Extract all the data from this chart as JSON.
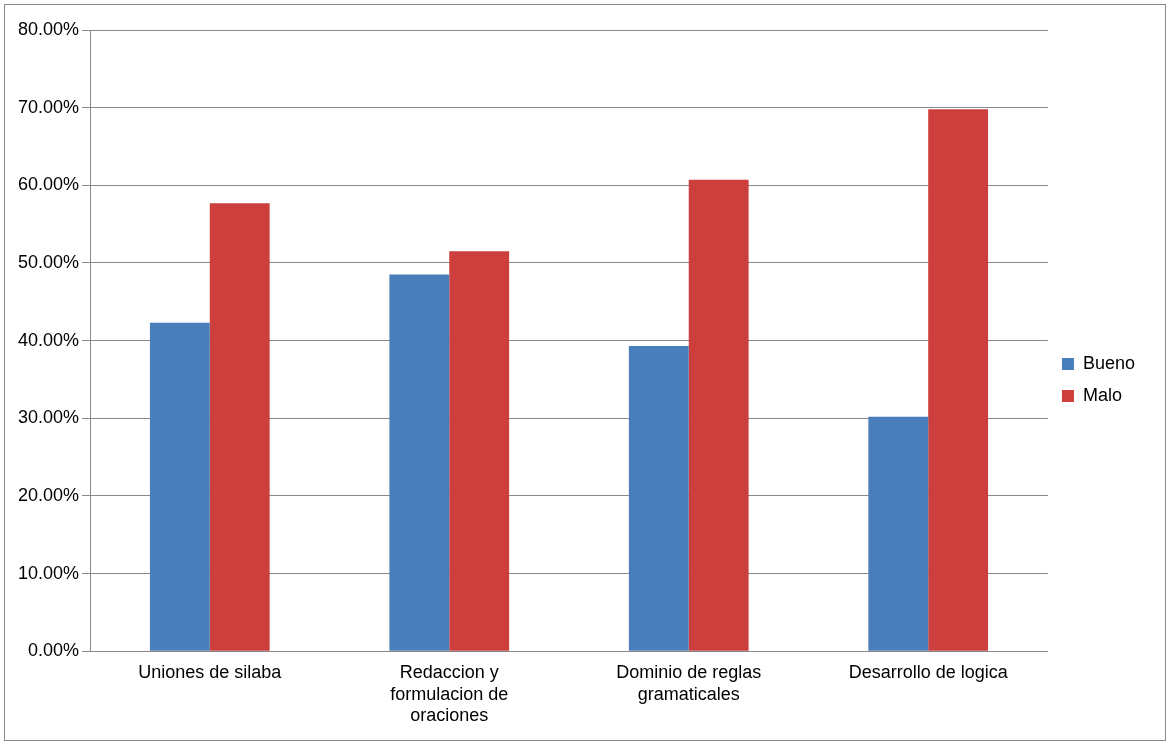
{
  "chart_data": {
    "type": "bar",
    "categories": [
      "Uniones de silaba",
      "Redaccion y formulacion de oraciones",
      "Dominio de reglas gramaticales",
      "Desarrollo de logica"
    ],
    "series": [
      {
        "name": "Bueno",
        "color": "#4a7ebb",
        "values": [
          42.3,
          48.5,
          39.3,
          30.2
        ]
      },
      {
        "name": "Malo",
        "color": "#cc3f3c",
        "values": [
          57.7,
          51.5,
          60.7,
          69.8
        ]
      }
    ],
    "ylim": [
      0,
      80
    ],
    "yticks": [
      {
        "value": 0,
        "label": "0.00%"
      },
      {
        "value": 10,
        "label": "10.00%"
      },
      {
        "value": 20,
        "label": "20.00%"
      },
      {
        "value": 30,
        "label": "30.00%"
      },
      {
        "value": 40,
        "label": "40.00%"
      },
      {
        "value": 50,
        "label": "50.00%"
      },
      {
        "value": 60,
        "label": "60.00%"
      },
      {
        "value": 70,
        "label": "70.00%"
      },
      {
        "value": 80,
        "label": "80.00%"
      }
    ],
    "grid": "y",
    "legend": "right"
  }
}
